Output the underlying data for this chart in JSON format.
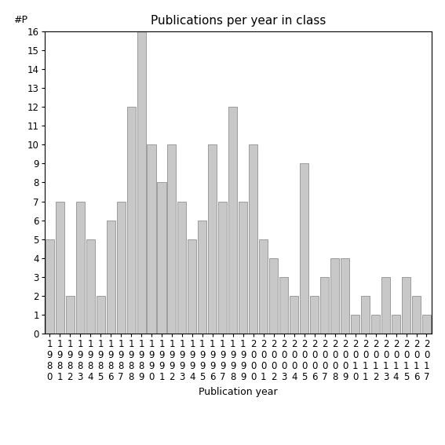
{
  "title": "Publications per year in class",
  "xlabel": "Publication year",
  "ylabel": "#P",
  "years": [
    "1980",
    "1981",
    "1982",
    "1983",
    "1984",
    "1985",
    "1986",
    "1987",
    "1988",
    "1989",
    "1990",
    "1991",
    "1992",
    "1993",
    "1994",
    "1995",
    "1996",
    "1997",
    "1998",
    "1999",
    "2000",
    "2001",
    "2002",
    "2003",
    "2004",
    "2005",
    "2006",
    "2007",
    "2008",
    "2009",
    "2010",
    "2011",
    "2012",
    "2013",
    "2014",
    "2015",
    "2016",
    "2017"
  ],
  "values": [
    5,
    7,
    2,
    7,
    5,
    2,
    6,
    7,
    12,
    16,
    10,
    8,
    10,
    7,
    5,
    6,
    10,
    7,
    12,
    7,
    10,
    5,
    4,
    3,
    2,
    9,
    2,
    3,
    4,
    4,
    1,
    2,
    1,
    3,
    1,
    3,
    2,
    1
  ],
  "bar_color": "#c8c8c8",
  "bar_edge_color": "#808080",
  "ylim": [
    0,
    16
  ],
  "yticks": [
    0,
    1,
    2,
    3,
    4,
    5,
    6,
    7,
    8,
    9,
    10,
    11,
    12,
    13,
    14,
    15,
    16
  ],
  "bg_color": "#ffffff",
  "title_fontsize": 11,
  "label_fontsize": 9,
  "tick_fontsize": 8.5
}
